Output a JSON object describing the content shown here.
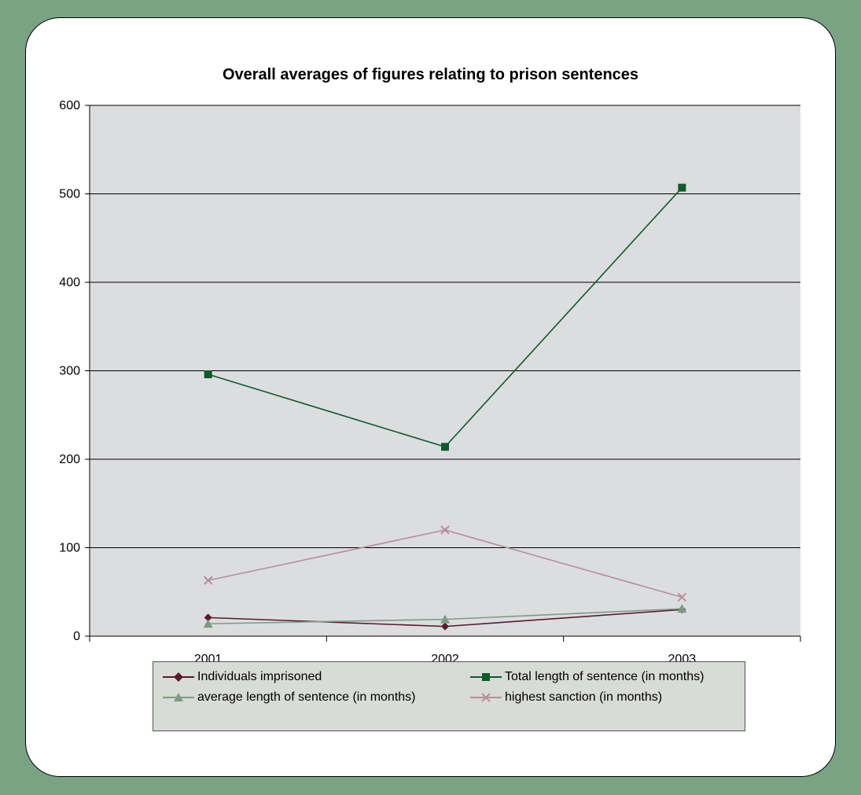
{
  "chart_data": {
    "type": "line",
    "title": "Overall averages of figures relating to prison sentences",
    "categories": [
      "2001",
      "2002",
      "2003"
    ],
    "ylim": [
      0,
      600
    ],
    "yticks": [
      0,
      100,
      200,
      300,
      400,
      500,
      600
    ],
    "grid": true,
    "legend_position": "bottom",
    "series": [
      {
        "name": "Individuals imprisoned",
        "values": [
          21,
          11,
          30
        ],
        "marker": "diamond",
        "color": "#5a1a2e"
      },
      {
        "name": "Total length of sentence (in months)",
        "values": [
          296,
          214,
          507
        ],
        "marker": "square",
        "color": "#0e5a2c"
      },
      {
        "name": "average length of sentence (in months)",
        "values": [
          14,
          19,
          31
        ],
        "marker": "triangle",
        "color": "#7e9b80"
      },
      {
        "name": "highest sanction (in months)",
        "values": [
          63,
          120,
          44
        ],
        "marker": "x",
        "color": "#b58e9b"
      }
    ]
  },
  "colors": {
    "background": "#7aa384",
    "plot_area": "#dcdddf",
    "legend_bg": "#d8dbd6"
  }
}
